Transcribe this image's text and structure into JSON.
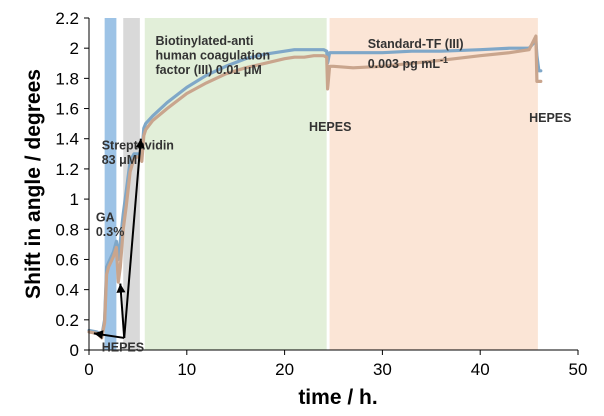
{
  "chart_data": {
    "type": "line",
    "xlabel": "time / h.",
    "ylabel": "Shift in angle / degrees",
    "xlim": [
      0,
      50
    ],
    "ylim": [
      0,
      2.2
    ],
    "x_ticks": [
      0,
      10,
      20,
      30,
      40,
      50
    ],
    "y_ticks": [
      0,
      0.2,
      0.4,
      0.6,
      0.8,
      1,
      1.2,
      1.4,
      1.6,
      1.8,
      2,
      2.2
    ],
    "x_tick_labels": [
      "0",
      "10",
      "20",
      "30",
      "40",
      "50"
    ],
    "y_tick_labels": [
      "0",
      "0.2",
      "0.4",
      "0.6",
      "0.8",
      "1",
      "1.2",
      "1.4",
      "1.6",
      "1.8",
      "2",
      "2.2"
    ],
    "grid": false,
    "regions": [
      {
        "x0": 1.6,
        "x1": 2.8,
        "color": "#9dc3e6"
      },
      {
        "x0": 3.5,
        "x1": 5.2,
        "color": "#d9d9d9"
      },
      {
        "x0": 5.7,
        "x1": 24.3,
        "color": "#e2efd9"
      },
      {
        "x0": 24.6,
        "x1": 45.9,
        "color": "#fbe5d6"
      }
    ],
    "series": [
      {
        "color": "#7fa7c8",
        "x": [
          0,
          0.8,
          1.0,
          1.3,
          1.6,
          1.8,
          2.0,
          2.5,
          2.8,
          3.0,
          3.2,
          3.5,
          3.8,
          4.2,
          4.6,
          5.0,
          5.2,
          5.4,
          5.6,
          5.8,
          6.5,
          8,
          10,
          12,
          14,
          16,
          18,
          20,
          21,
          22,
          23,
          24,
          24.3,
          24.4,
          24.6,
          25,
          27,
          30,
          33,
          36,
          40,
          43,
          45,
          45.7,
          45.8,
          46,
          46.2
        ],
        "y": [
          0.13,
          0.12,
          0.11,
          0.09,
          0.2,
          0.55,
          0.58,
          0.65,
          0.72,
          0.6,
          0.72,
          0.9,
          1.05,
          1.25,
          1.3,
          1.3,
          1.3,
          1.3,
          1.47,
          1.5,
          1.55,
          1.64,
          1.74,
          1.82,
          1.88,
          1.93,
          1.96,
          1.98,
          1.99,
          1.99,
          1.99,
          1.99,
          1.98,
          1.9,
          1.97,
          1.97,
          1.97,
          1.97,
          1.98,
          1.98,
          1.99,
          2.0,
          2.0,
          2.05,
          1.95,
          1.85,
          1.85
        ]
      },
      {
        "color": "#c9a58d",
        "x": [
          0,
          0.8,
          1.0,
          1.3,
          1.6,
          1.8,
          2.0,
          2.5,
          2.8,
          3.0,
          3.2,
          3.5,
          3.8,
          4.2,
          4.6,
          5.0,
          5.2,
          5.4,
          5.6,
          5.8,
          6.5,
          8,
          10,
          12,
          14,
          16,
          18,
          20,
          21,
          22,
          23,
          24,
          24.3,
          24.4,
          24.6,
          25,
          27,
          30,
          33,
          36,
          40,
          43,
          45,
          45.7,
          45.8,
          46,
          46.2
        ],
        "y": [
          0.12,
          0.11,
          0.1,
          0.08,
          0.18,
          0.5,
          0.55,
          0.62,
          0.68,
          0.45,
          0.55,
          0.8,
          0.95,
          1.18,
          1.27,
          1.28,
          1.28,
          1.25,
          1.42,
          1.46,
          1.52,
          1.6,
          1.7,
          1.77,
          1.83,
          1.87,
          1.9,
          1.93,
          1.94,
          1.94,
          1.95,
          1.95,
          1.94,
          1.73,
          1.88,
          1.88,
          1.87,
          1.88,
          1.9,
          1.92,
          1.95,
          1.97,
          1.99,
          2.08,
          1.78,
          1.78,
          1.78
        ]
      }
    ],
    "annotations": [
      {
        "lines": [
          "Biotinylated-anti",
          "human coagulation",
          "factor (III) 0.01  μM"
        ],
        "x": 6.8,
        "y": 2.02
      },
      {
        "lines": [
          "Streptavidin",
          "83 μM"
        ],
        "x": 1.3,
        "y": 1.33
      },
      {
        "lines": [
          "GA",
          "0.3%"
        ],
        "x": 0.7,
        "y": 0.85
      },
      {
        "lines": [
          "HEPES"
        ],
        "x": 1.3,
        "y": -0.01
      },
      {
        "lines": [
          "HEPES"
        ],
        "x": 22.5,
        "y": 1.45
      },
      {
        "lines": [
          "Standard-TF  (III)"
        ],
        "x": 28.5,
        "y": 2.0
      },
      {
        "lines": [
          "HEPES"
        ],
        "x": 45.0,
        "y": 1.51
      }
    ],
    "annotation_extra": {
      "text": "0.003 pg mL",
      "superscript": "-1",
      "x": 28.5,
      "y": 1.87
    },
    "arrows": [
      {
        "from": [
          3.6,
          0.08
        ],
        "to": [
          0.5,
          0.11
        ]
      },
      {
        "from": [
          3.6,
          0.08
        ],
        "to": [
          3.2,
          0.44
        ]
      },
      {
        "from": [
          3.6,
          0.08
        ],
        "to": [
          5.3,
          1.4
        ]
      }
    ]
  }
}
